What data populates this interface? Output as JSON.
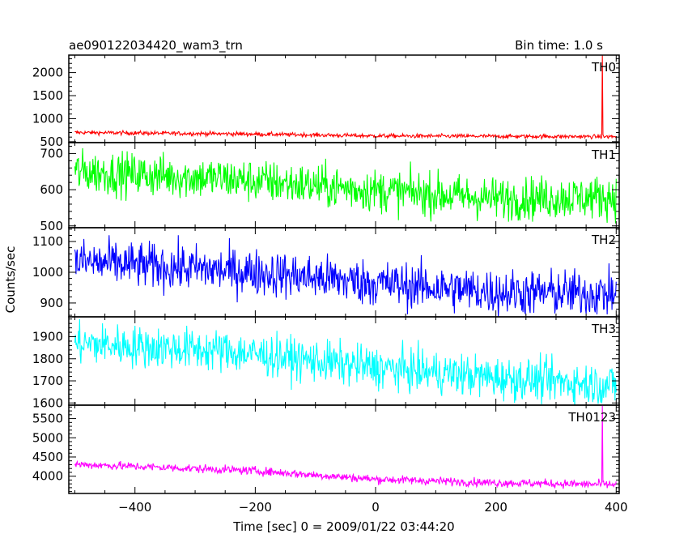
{
  "chart_data": {
    "type": "line",
    "title_left": "ae090122034420_wam3_trn",
    "title_right": "Bin time: 1.0 s",
    "xlabel": "Time [sec] 0 = 2009/01/22 03:44:20",
    "ylabel": "Counts/sec",
    "xlim": [
      -510,
      405
    ],
    "xticks": [
      -400,
      -200,
      0,
      200,
      400
    ],
    "grid": false,
    "panels": [
      {
        "name": "TH0",
        "color": "#ff0000",
        "ylim": [
          480,
          2380
        ],
        "yticks": [
          500,
          1000,
          1500,
          2000
        ],
        "trend": [
          [
            -500,
            700
          ],
          [
            -200,
            665
          ],
          [
            0,
            625
          ],
          [
            380,
            610
          ],
          [
            400,
            610
          ]
        ],
        "noise": 22,
        "spike": {
          "x": 377,
          "y": 2380
        }
      },
      {
        "name": "TH1",
        "color": "#00ff00",
        "ylim": [
          495,
          730
        ],
        "yticks": [
          500,
          600,
          700
        ],
        "trend": [
          [
            -500,
            650
          ],
          [
            -250,
            630
          ],
          [
            0,
            598
          ],
          [
            200,
            575
          ],
          [
            400,
            580
          ]
        ],
        "noise": 30,
        "spike": null
      },
      {
        "name": "TH2",
        "color": "#0000ff",
        "ylim": [
          855,
          1145
        ],
        "yticks": [
          900,
          1000,
          1100
        ],
        "trend": [
          [
            -500,
            1035
          ],
          [
            -200,
            1000
          ],
          [
            0,
            965
          ],
          [
            200,
            935
          ],
          [
            400,
            930
          ]
        ],
        "noise": 38,
        "spike": null
      },
      {
        "name": "TH3",
        "color": "#00ffff",
        "ylim": [
          1590,
          1990
        ],
        "yticks": [
          1600,
          1700,
          1800,
          1900
        ],
        "trend": [
          [
            -500,
            1870
          ],
          [
            -250,
            1835
          ],
          [
            0,
            1760
          ],
          [
            200,
            1715
          ],
          [
            400,
            1680
          ]
        ],
        "noise": 48,
        "spike": null
      },
      {
        "name": "TH0123",
        "color": "#ff00ff",
        "ylim": [
          3550,
          5850
        ],
        "yticks": [
          4000,
          4500,
          5000,
          5500
        ],
        "trend": [
          [
            -500,
            4310
          ],
          [
            -200,
            4140
          ],
          [
            0,
            3920
          ],
          [
            200,
            3830
          ],
          [
            400,
            3780
          ]
        ],
        "noise": 55,
        "spike": {
          "x": 377,
          "y": 5850
        }
      }
    ]
  }
}
